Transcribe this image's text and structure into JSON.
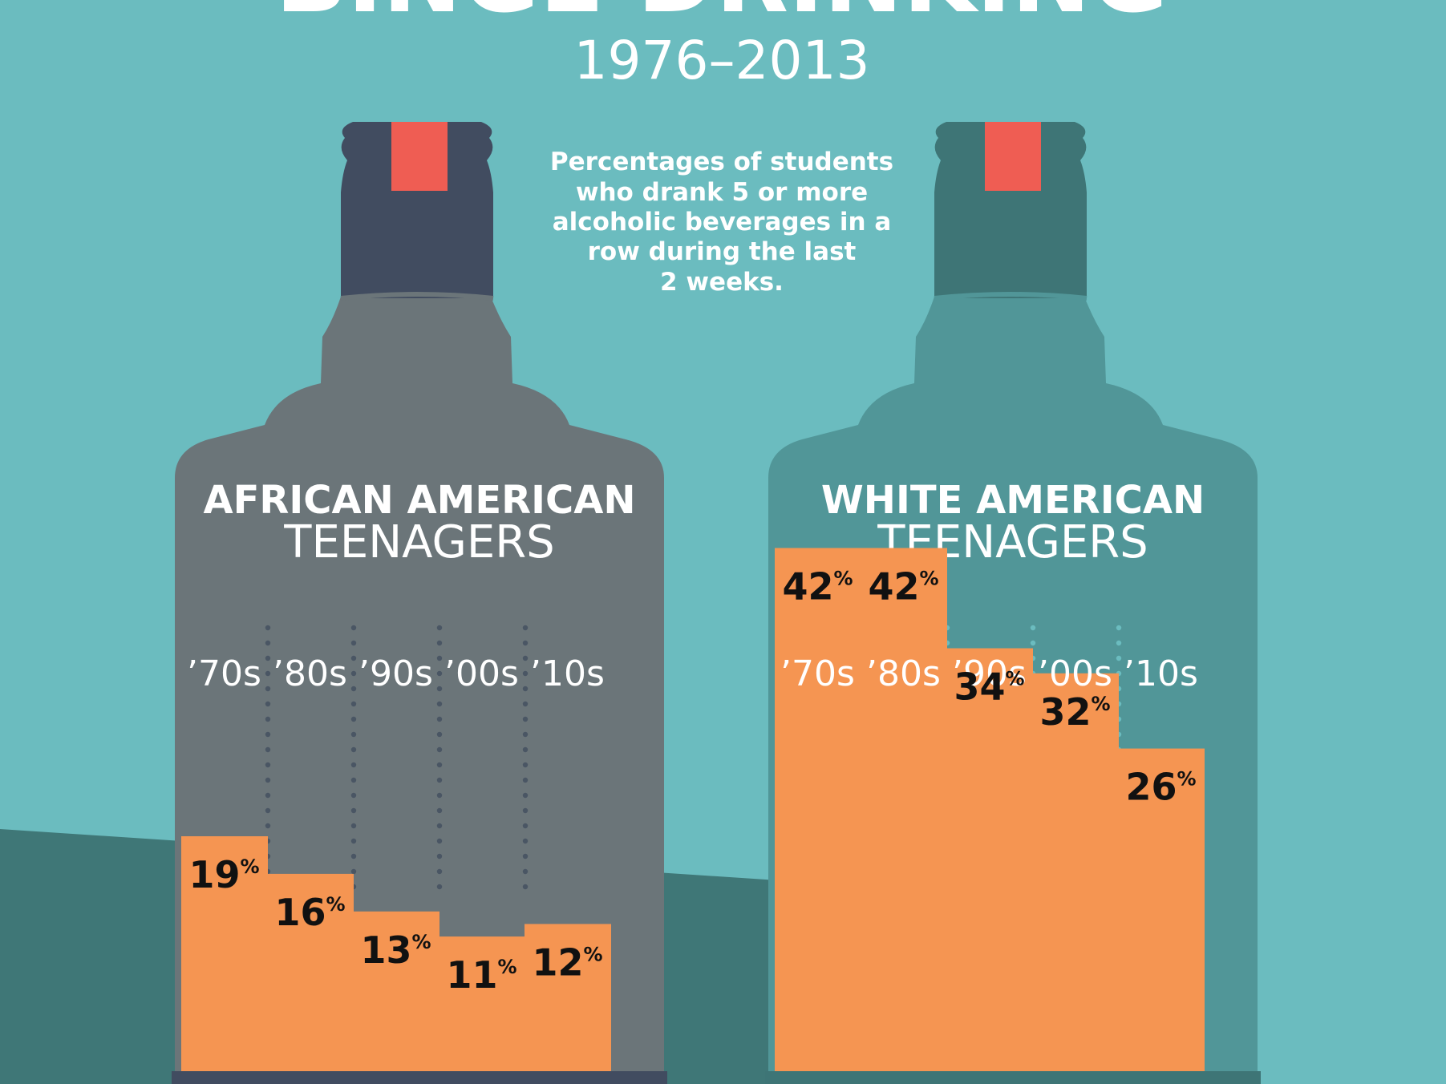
{
  "title": "BINGE DRINKING",
  "years": "1976–2013",
  "subtitle_lines": [
    "Percentages of students",
    "who drank 5 or more",
    "alcoholic beverages in a",
    "row during the last",
    "2 weeks."
  ],
  "colors": {
    "background": "#6bbcbf",
    "shadow": "#3f7777",
    "liquid": "#f59552",
    "cap": "#ef5d53",
    "bottle_african_american": "#6b7579",
    "neck_african_american": "#414c60",
    "bottle_white_american": "#519698",
    "neck_white_american": "#3e7576"
  },
  "chart_data": {
    "type": "bar",
    "title": "BINGE DRINKING",
    "subtitle": "1976–2013",
    "categories": [
      "’70s",
      "’80s",
      "’90s",
      "’00s",
      "’10s"
    ],
    "value_suffix": "%",
    "ylim": [
      0,
      100
    ],
    "series": [
      {
        "name_bold": "AFRICAN AMERICAN",
        "name_light": "TEENAGERS",
        "values": [
          19,
          16,
          13,
          11,
          12
        ]
      },
      {
        "name_bold": "WHITE AMERICAN",
        "name_light": "TEENAGERS",
        "values": [
          42,
          42,
          34,
          32,
          26
        ]
      }
    ]
  }
}
